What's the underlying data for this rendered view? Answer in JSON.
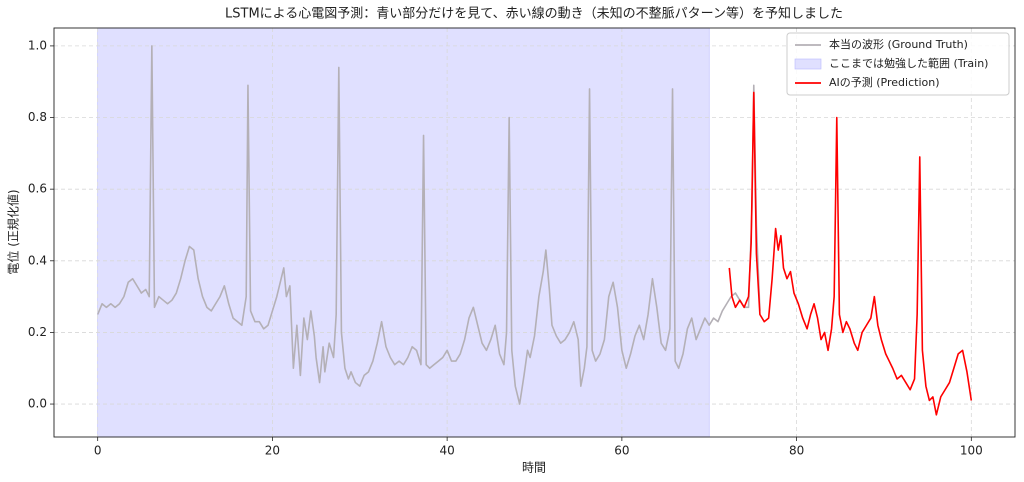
{
  "chart_data": {
    "type": "line",
    "title": "LSTMによる心電図予測：青い部分だけを見て、赤い線の動き（未知の不整脈パターン等）を予知しました",
    "xlabel": "時間",
    "ylabel": "電位 (正規化値)",
    "xlim": [
      -5,
      105
    ],
    "ylim": [
      -0.092,
      1.05
    ],
    "xticks": [
      0,
      20,
      40,
      60,
      80,
      100
    ],
    "yticks": [
      {
        "value": 0,
        "label": "0.0"
      },
      0.2,
      0.4,
      0.6,
      0.8,
      {
        "value": 1,
        "label": "1.0"
      }
    ],
    "grid": true,
    "legend": "upper right",
    "shaded_region": {
      "name": "ここまでは勉強した範囲 (Train)",
      "color": "#e0e0ff",
      "range": [
        0,
        70
      ]
    },
    "series": [
      {
        "name": "本当の波形 (Ground Truth)",
        "color": "#b4b0b6",
        "x": [
          0,
          0.5,
          1,
          1.5,
          2,
          2.5,
          3,
          3.5,
          4,
          4.5,
          5,
          5.5,
          5.9,
          6.2,
          6.5,
          7,
          7.5,
          8,
          8.5,
          9,
          9.5,
          10,
          10.5,
          11,
          11.5,
          12,
          12.5,
          13,
          13.5,
          14,
          14.5,
          15,
          15.5,
          16,
          16.5,
          17,
          17.2,
          17.5,
          18,
          18.5,
          19,
          19.5,
          20,
          20.5,
          21,
          21.3,
          21.6,
          22,
          22.4,
          22.8,
          23.2,
          23.6,
          24,
          24.4,
          24.8,
          25,
          25.4,
          25.8,
          26,
          26.5,
          27,
          27.3,
          27.6,
          27.9,
          28.3,
          28.7,
          29,
          29.5,
          30,
          30.5,
          31,
          31.5,
          32,
          32.5,
          33,
          33.5,
          34,
          34.5,
          35,
          35.5,
          36,
          36.5,
          37,
          37.3,
          37.6,
          38,
          38.5,
          39,
          39.5,
          40,
          40.5,
          41,
          41.5,
          42,
          42.5,
          43,
          43.5,
          44,
          44.5,
          45,
          45.5,
          46,
          46.5,
          46.8,
          47.1,
          47.4,
          47.8,
          48.3,
          48.8,
          49.2,
          49.5,
          50,
          50.5,
          51,
          51.3,
          51.7,
          52,
          52.5,
          53,
          53.5,
          54,
          54.5,
          55,
          55.3,
          55.7,
          56,
          56.3,
          56.6,
          57,
          57.5,
          58,
          58.5,
          59,
          59.5,
          60,
          60.5,
          61,
          61.5,
          62,
          62.5,
          63,
          63.5,
          64,
          64.5,
          65,
          65.5,
          65.8,
          66.1,
          66.5,
          67,
          67.5,
          68,
          68.5,
          69,
          69.5,
          70,
          70.5,
          71,
          71.5,
          72,
          72.5,
          73,
          73.5,
          74,
          74.5,
          74.9,
          75.1,
          75.4,
          75.8
        ],
        "values": [
          0.25,
          0.28,
          0.27,
          0.28,
          0.27,
          0.28,
          0.3,
          0.34,
          0.35,
          0.33,
          0.31,
          0.32,
          0.3,
          1.0,
          0.27,
          0.3,
          0.29,
          0.28,
          0.29,
          0.31,
          0.35,
          0.4,
          0.44,
          0.43,
          0.35,
          0.3,
          0.27,
          0.26,
          0.28,
          0.3,
          0.33,
          0.28,
          0.24,
          0.23,
          0.22,
          0.3,
          0.89,
          0.26,
          0.23,
          0.23,
          0.21,
          0.22,
          0.26,
          0.3,
          0.35,
          0.38,
          0.3,
          0.33,
          0.1,
          0.22,
          0.08,
          0.24,
          0.18,
          0.26,
          0.19,
          0.13,
          0.06,
          0.16,
          0.09,
          0.17,
          0.13,
          0.25,
          0.94,
          0.2,
          0.1,
          0.07,
          0.09,
          0.06,
          0.05,
          0.08,
          0.09,
          0.12,
          0.17,
          0.23,
          0.16,
          0.13,
          0.11,
          0.12,
          0.11,
          0.13,
          0.16,
          0.15,
          0.11,
          0.75,
          0.11,
          0.1,
          0.11,
          0.12,
          0.13,
          0.15,
          0.12,
          0.12,
          0.14,
          0.18,
          0.24,
          0.27,
          0.22,
          0.17,
          0.15,
          0.18,
          0.22,
          0.14,
          0.11,
          0.2,
          0.8,
          0.15,
          0.05,
          0.0,
          0.08,
          0.15,
          0.13,
          0.19,
          0.3,
          0.37,
          0.43,
          0.32,
          0.22,
          0.19,
          0.17,
          0.18,
          0.2,
          0.23,
          0.18,
          0.05,
          0.1,
          0.16,
          0.88,
          0.15,
          0.12,
          0.14,
          0.18,
          0.3,
          0.34,
          0.27,
          0.15,
          0.1,
          0.14,
          0.19,
          0.22,
          0.18,
          0.25,
          0.35,
          0.27,
          0.17,
          0.15,
          0.21,
          0.88,
          0.12,
          0.1,
          0.14,
          0.21,
          0.24,
          0.18,
          0.21,
          0.24,
          0.22,
          0.24,
          0.23,
          0.26,
          0.28,
          0.3,
          0.31,
          0.29,
          0.27,
          0.27,
          0.55,
          0.89,
          0.5,
          0.26
        ]
      },
      {
        "name": "AIの予測 (Prediction)",
        "color": "#ff0000",
        "x": [
          72.3,
          72.6,
          73,
          73.5,
          74,
          74.5,
          74.8,
          75.1,
          75.4,
          75.8,
          76.3,
          76.8,
          77.2,
          77.6,
          77.9,
          78.2,
          78.5,
          78.9,
          79.3,
          79.7,
          80.2,
          80.7,
          81.2,
          81.6,
          82,
          82.4,
          82.8,
          83.2,
          83.6,
          84,
          84.3,
          84.6,
          84.9,
          85.3,
          85.7,
          86.1,
          86.6,
          87,
          87.5,
          88,
          88.5,
          88.9,
          89.3,
          89.7,
          90.2,
          90.6,
          91,
          91.5,
          92,
          92.5,
          93,
          93.5,
          93.8,
          94.1,
          94.4,
          94.8,
          95.2,
          95.6,
          96,
          96.5,
          97,
          97.5,
          98,
          98.5,
          99,
          99.5,
          100
        ],
        "values": [
          0.38,
          0.3,
          0.27,
          0.29,
          0.27,
          0.3,
          0.45,
          0.87,
          0.42,
          0.25,
          0.23,
          0.24,
          0.35,
          0.49,
          0.43,
          0.47,
          0.38,
          0.35,
          0.37,
          0.31,
          0.28,
          0.24,
          0.21,
          0.25,
          0.28,
          0.24,
          0.18,
          0.2,
          0.15,
          0.21,
          0.3,
          0.8,
          0.25,
          0.2,
          0.23,
          0.21,
          0.17,
          0.15,
          0.2,
          0.22,
          0.24,
          0.3,
          0.22,
          0.18,
          0.14,
          0.12,
          0.1,
          0.07,
          0.08,
          0.06,
          0.04,
          0.07,
          0.25,
          0.69,
          0.15,
          0.05,
          0.01,
          0.02,
          -0.03,
          0.02,
          0.04,
          0.06,
          0.1,
          0.14,
          0.15,
          0.09,
          0.01
        ]
      }
    ]
  }
}
